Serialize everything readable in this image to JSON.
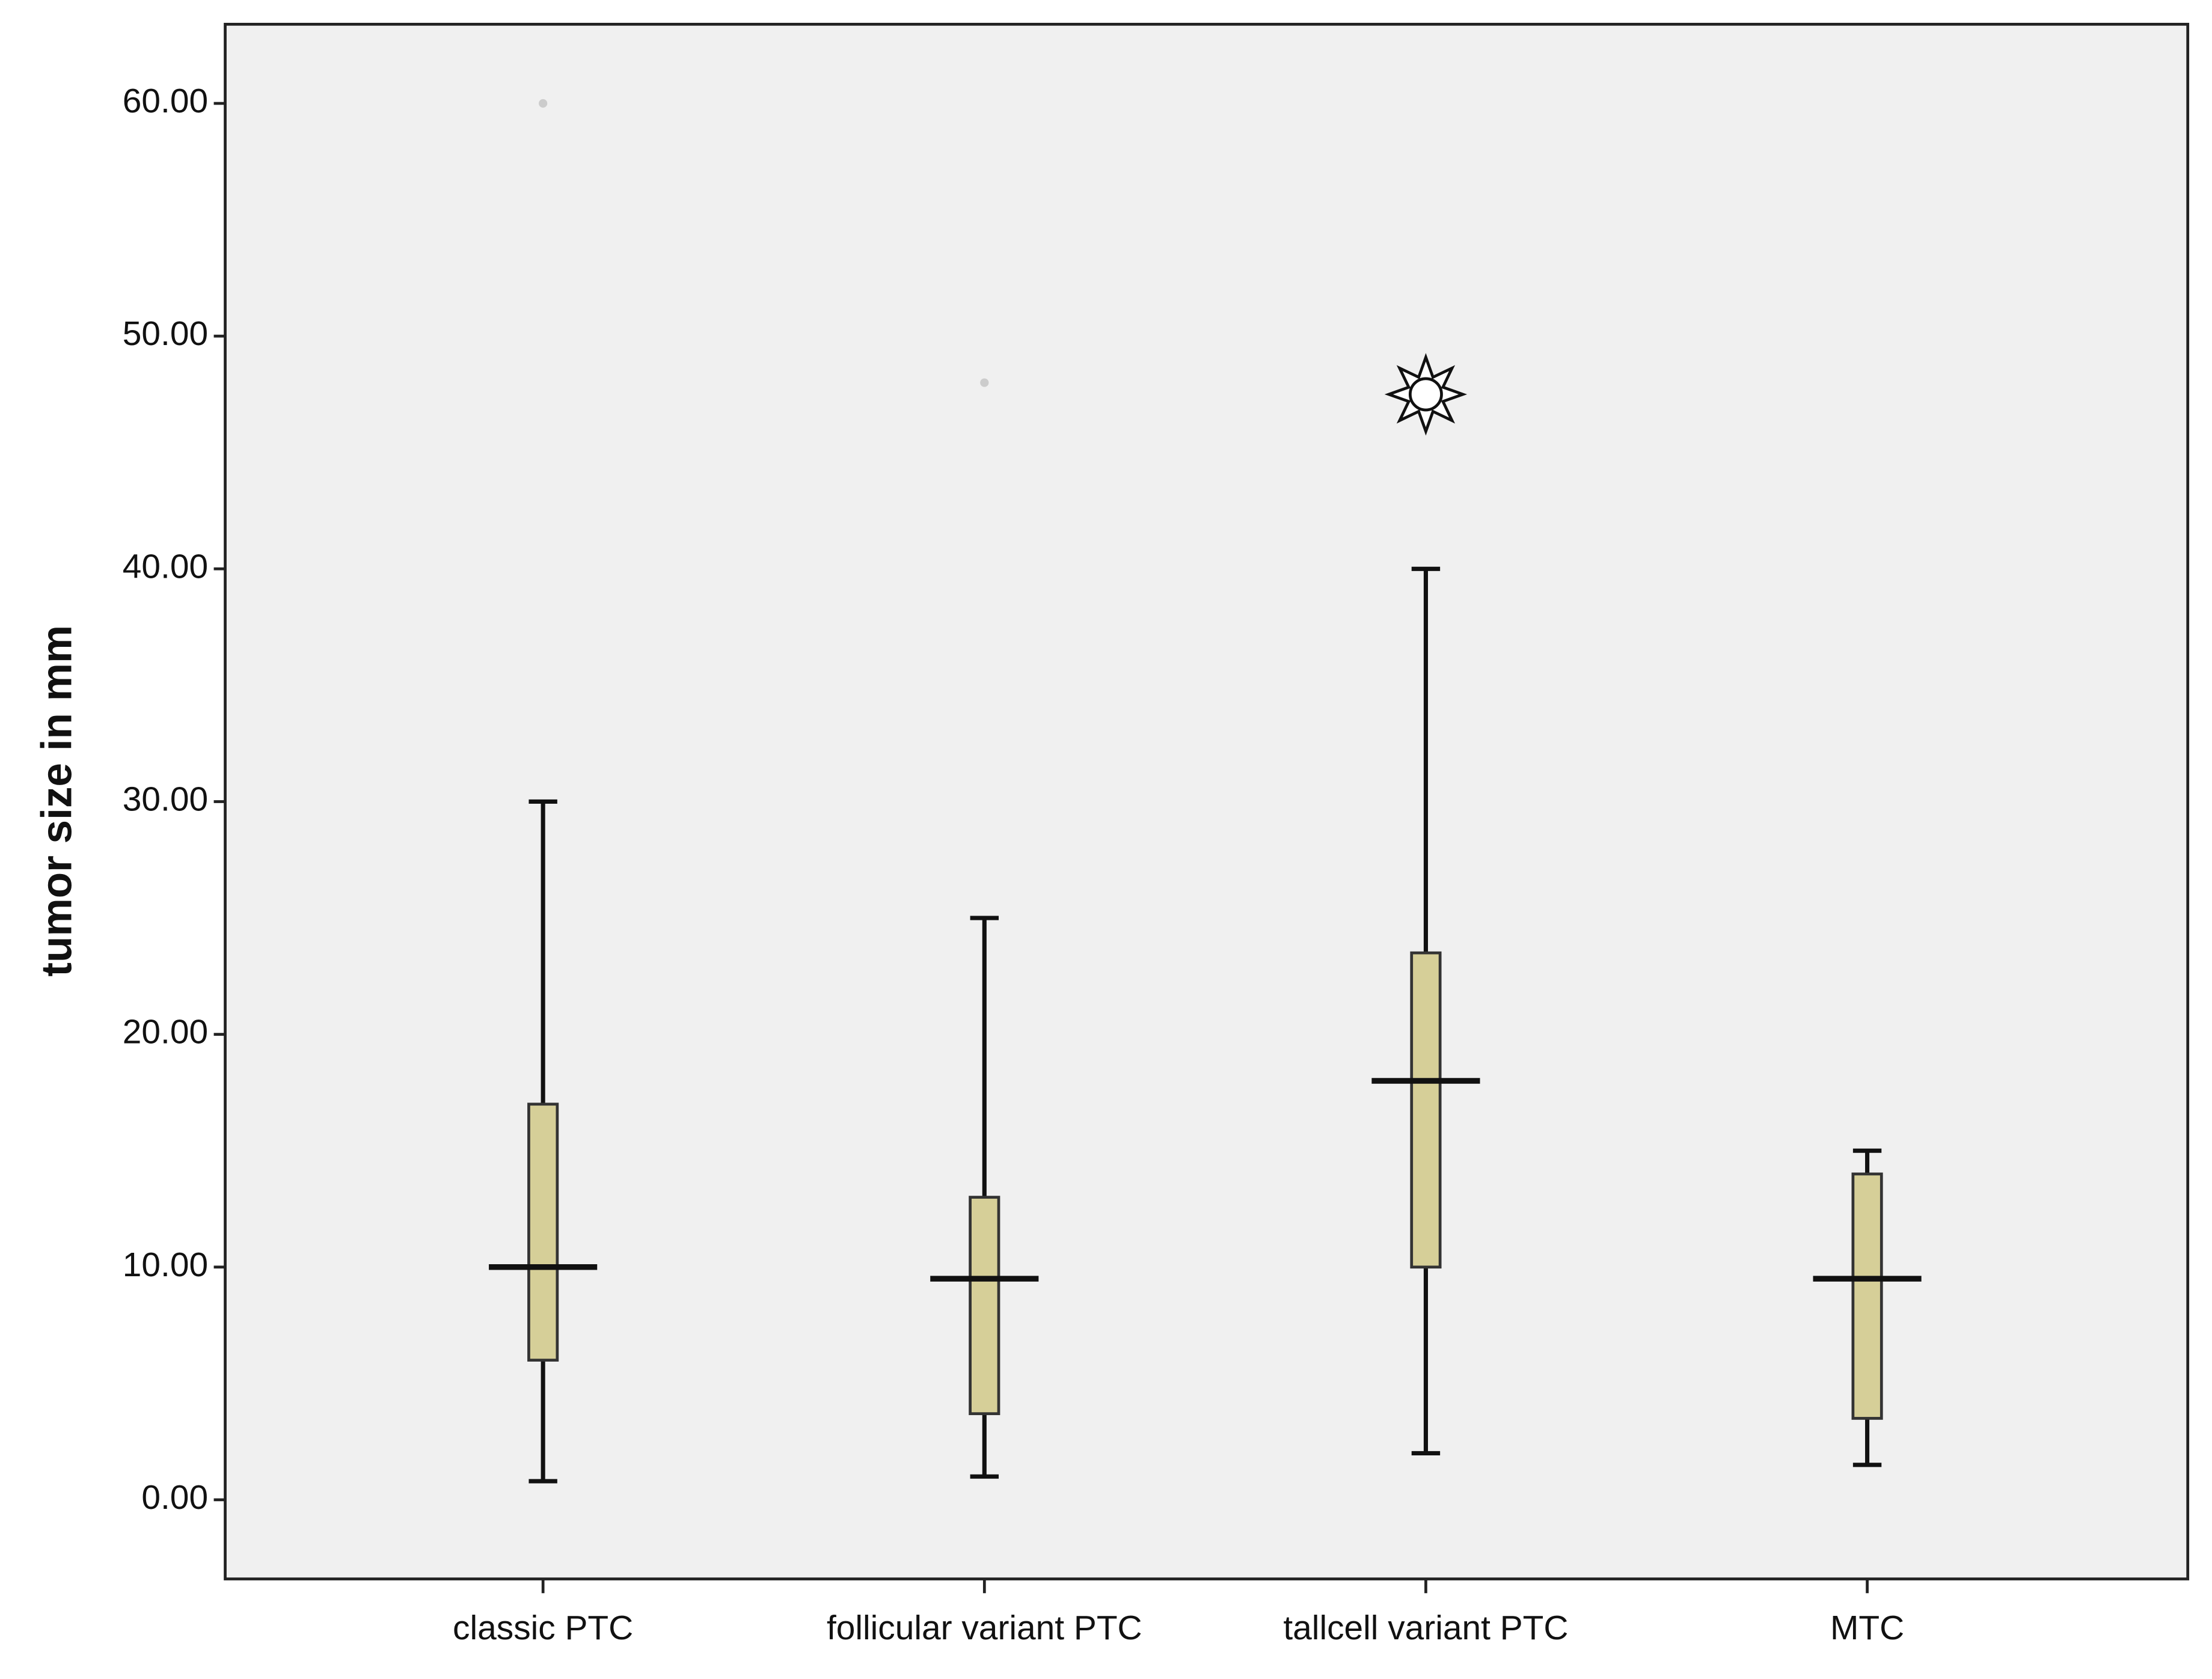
{
  "chart_data": {
    "type": "box",
    "ylabel": "tumor size in mm",
    "categories": [
      "classic PTC",
      "follicular variant PTC",
      "tallcell variant PTC",
      "MTC"
    ],
    "low": [
      0.8,
      1.0,
      2.0,
      1.5
    ],
    "q1": [
      6.0,
      3.7,
      10.0,
      3.5
    ],
    "median": [
      10.0,
      9.5,
      18.0,
      9.5
    ],
    "q3": [
      17.0,
      13.0,
      23.5,
      14.0
    ],
    "high": [
      30.0,
      25.0,
      40.0,
      15.0
    ],
    "outliers": [
      [
        60.0
      ],
      [
        48.0
      ],
      [],
      []
    ],
    "extremes": [
      [],
      [],
      [
        47.5
      ],
      []
    ],
    "color": "#d6cf98",
    "ylim": [
      -3.4,
      63.4
    ],
    "yticks": [
      {
        "value": 0,
        "label": "0.00"
      },
      {
        "value": 10,
        "label": "10.00"
      },
      {
        "value": 20,
        "label": "20.00"
      },
      {
        "value": 30,
        "label": "30.00"
      },
      {
        "value": 40,
        "label": "40.00"
      },
      {
        "value": 50,
        "label": "50.00"
      },
      {
        "value": 60,
        "label": "60.00"
      }
    ]
  }
}
